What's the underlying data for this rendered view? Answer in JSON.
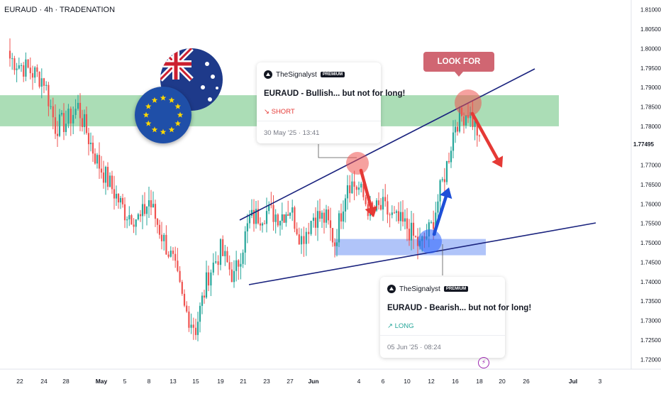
{
  "header": {
    "symbol": "EURAUD",
    "timeframe": "4h",
    "broker": "TRADENATION",
    "text": "EURAUD · 4h · TRADENATION"
  },
  "colors": {
    "up": "#26a69a",
    "down": "#ef5350",
    "zone": "#8fd19e",
    "support_zone": "#7b9cf5",
    "trendline": "#1a237e",
    "short_arrow": "#e53935",
    "long_arrow": "#1e4fd8"
  },
  "chart_data": {
    "type": "candlestick",
    "y_axis": {
      "range": [
        1.7175,
        1.8125
      ],
      "ticks": [
        "1.81000",
        "1.80500",
        "1.80000",
        "1.79500",
        "1.79000",
        "1.78500",
        "1.78000",
        "1.77500",
        "1.77000",
        "1.76500",
        "1.76000",
        "1.75500",
        "1.75000",
        "1.74500",
        "1.74000",
        "1.73500",
        "1.73000",
        "1.72500",
        "1.72000"
      ],
      "last_price": "1.77495"
    },
    "x_axis": {
      "ticks": [
        "22",
        "24",
        "28",
        "May",
        "5",
        "8",
        "13",
        "15",
        "19",
        "21",
        "23",
        "27",
        "Jun",
        "4",
        "6",
        "10",
        "12",
        "16",
        "18",
        "20",
        "26",
        "Jul",
        "3"
      ]
    },
    "price_path": [
      {
        "t": "Apr 22",
        "p": 1.7975
      },
      {
        "t": "Apr 24",
        "p": 1.792
      },
      {
        "t": "Apr 25",
        "p": 1.78
      },
      {
        "t": "Apr 28",
        "p": 1.781
      },
      {
        "t": "Apr 29",
        "p": 1.785
      },
      {
        "t": "Apr 30",
        "p": 1.777
      },
      {
        "t": "May 2",
        "p": 1.771
      },
      {
        "t": "May 5",
        "p": 1.758
      },
      {
        "t": "May 7",
        "p": 1.756
      },
      {
        "t": "May 8",
        "p": 1.761
      },
      {
        "t": "May 9",
        "p": 1.752
      },
      {
        "t": "May 12",
        "p": 1.745
      },
      {
        "t": "May 13",
        "p": 1.733
      },
      {
        "t": "May 14",
        "p": 1.728
      },
      {
        "t": "May 15",
        "p": 1.742
      },
      {
        "t": "May 16",
        "p": 1.748
      },
      {
        "t": "May 19",
        "p": 1.741
      },
      {
        "t": "May 20",
        "p": 1.756
      },
      {
        "t": "May 21",
        "p": 1.758
      },
      {
        "t": "May 22",
        "p": 1.757
      },
      {
        "t": "May 23",
        "p": 1.759
      },
      {
        "t": "May 26",
        "p": 1.751
      },
      {
        "t": "May 27",
        "p": 1.757
      },
      {
        "t": "May 28",
        "p": 1.756
      },
      {
        "t": "May 29",
        "p": 1.75
      },
      {
        "t": "May 30",
        "p": 1.766
      },
      {
        "t": "Jun 2",
        "p": 1.764
      },
      {
        "t": "Jun 3",
        "p": 1.758
      },
      {
        "t": "Jun 4",
        "p": 1.759
      },
      {
        "t": "Jun 5",
        "p": 1.756
      },
      {
        "t": "Jun 6",
        "p": 1.754
      },
      {
        "t": "Jun 9",
        "p": 1.749
      },
      {
        "t": "Jun 10",
        "p": 1.754
      },
      {
        "t": "Jun 11",
        "p": 1.77
      },
      {
        "t": "Jun 12",
        "p": 1.781
      },
      {
        "t": "Jun 13",
        "p": 1.784
      },
      {
        "t": "Jun 16",
        "p": 1.7775
      }
    ],
    "resistance_zone": [
      1.78,
      1.788
    ],
    "support_zone": [
      1.749,
      1.751
    ],
    "annotation_label": "LOOK FOR SHORTS"
  },
  "ideas": [
    {
      "author": "TheSignalyst",
      "badge": "PREMIUM",
      "title": "EURAUD - Bullish... but not for long!",
      "direction": "SHORT",
      "date": "30 May '25 · 13:41"
    },
    {
      "author": "TheSignalyst",
      "badge": "PREMIUM",
      "title": "EURAUD - Bearish... but not for long!",
      "direction": "LONG",
      "date": "05 Jun '25 · 08:24"
    }
  ],
  "events_icon": "lightning-icon"
}
